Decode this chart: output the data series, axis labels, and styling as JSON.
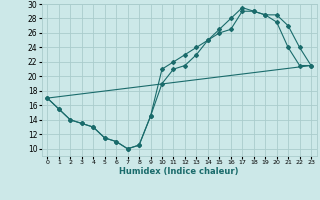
{
  "xlabel": "Humidex (Indice chaleur)",
  "background_color": "#cce8e8",
  "grid_color": "#aacccc",
  "line_color": "#1a6b6b",
  "xlim": [
    -0.5,
    23.5
  ],
  "ylim": [
    9,
    30
  ],
  "xticks": [
    0,
    1,
    2,
    3,
    4,
    5,
    6,
    7,
    8,
    9,
    10,
    11,
    12,
    13,
    14,
    15,
    16,
    17,
    18,
    19,
    20,
    21,
    22,
    23
  ],
  "yticks": [
    10,
    12,
    14,
    16,
    18,
    20,
    22,
    24,
    26,
    28,
    30
  ],
  "line1_x": [
    0,
    1,
    2,
    3,
    4,
    5,
    6,
    7,
    8,
    9,
    10,
    11,
    12,
    13,
    14,
    15,
    16,
    17,
    18,
    19,
    20,
    21,
    22,
    23
  ],
  "line1_y": [
    17,
    15.5,
    14,
    13.5,
    13,
    11.5,
    11,
    10,
    10.5,
    14.5,
    19,
    21,
    21.5,
    23,
    25,
    26,
    26.5,
    29,
    29,
    28.5,
    27.5,
    24,
    21.5,
    21.5
  ],
  "line2_x": [
    0,
    1,
    2,
    3,
    4,
    5,
    6,
    7,
    8,
    9,
    10,
    11,
    12,
    13,
    14,
    15,
    16,
    17,
    18,
    19,
    20,
    21,
    22,
    23
  ],
  "line2_y": [
    17,
    15.5,
    14,
    13.5,
    13,
    11.5,
    11,
    10,
    10.5,
    14.5,
    21,
    22,
    23,
    24,
    25,
    26.5,
    28,
    29.5,
    29,
    28.5,
    28.5,
    27,
    24,
    21.5
  ],
  "line3_x": [
    0,
    23
  ],
  "line3_y": [
    17,
    21.5
  ]
}
